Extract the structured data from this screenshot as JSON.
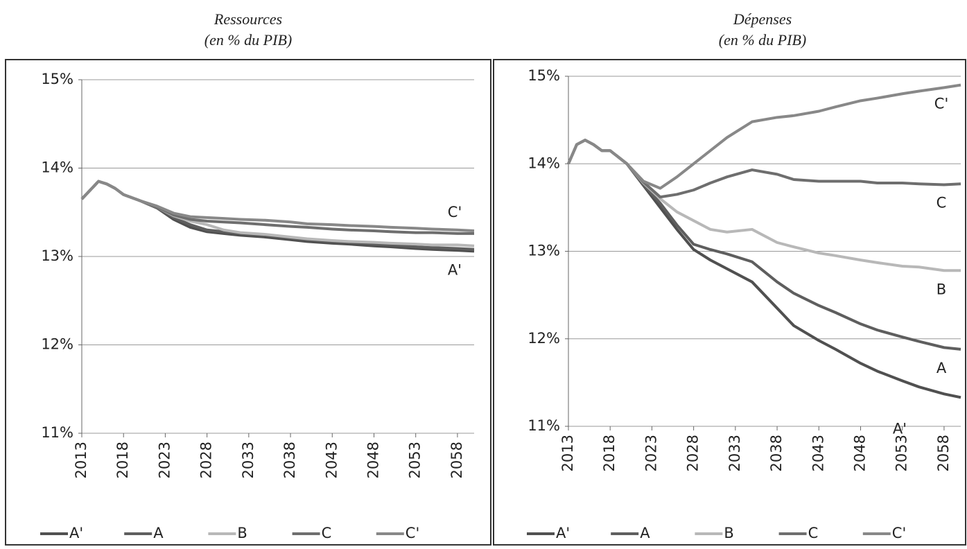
{
  "chart_data": [
    {
      "type": "line",
      "title": "Ressources",
      "subtitle": "(en % du PIB)",
      "x": [
        2013,
        2014,
        2015,
        2016,
        2017,
        2018,
        2020,
        2022,
        2024,
        2026,
        2028,
        2030,
        2032,
        2035,
        2038,
        2040,
        2043,
        2045,
        2048,
        2050,
        2053,
        2055,
        2058,
        2060
      ],
      "xlim": [
        2013,
        2060
      ],
      "xticks": [
        2013,
        2018,
        2023,
        2028,
        2033,
        2038,
        2043,
        2048,
        2053,
        2058
      ],
      "ylim": [
        11,
        15
      ],
      "yticks": [
        {
          "value": 11,
          "label": "11%"
        },
        {
          "value": 12,
          "label": "12%"
        },
        {
          "value": 13,
          "label": "13%"
        },
        {
          "value": 14,
          "label": "14%"
        },
        {
          "value": 15,
          "label": "15%"
        }
      ],
      "grid": true,
      "series": [
        {
          "name": "A'",
          "color": "#505050",
          "values": [
            13.65,
            13.75,
            13.85,
            13.82,
            13.77,
            13.7,
            13.63,
            13.55,
            13.42,
            13.33,
            13.28,
            13.26,
            13.24,
            13.22,
            13.19,
            13.17,
            13.15,
            13.14,
            13.12,
            13.11,
            13.09,
            13.08,
            13.07,
            13.06
          ]
        },
        {
          "name": "A",
          "color": "#5e5e5e",
          "values": [
            13.65,
            13.75,
            13.85,
            13.82,
            13.77,
            13.7,
            13.63,
            13.55,
            13.44,
            13.36,
            13.3,
            13.28,
            13.26,
            13.24,
            13.21,
            13.19,
            13.17,
            13.16,
            13.14,
            13.13,
            13.11,
            13.1,
            13.09,
            13.08
          ]
        },
        {
          "name": "B",
          "color": "#b8b8b8",
          "values": [
            13.65,
            13.75,
            13.85,
            13.82,
            13.77,
            13.7,
            13.63,
            13.56,
            13.46,
            13.4,
            13.36,
            13.3,
            13.27,
            13.25,
            13.22,
            13.2,
            13.18,
            13.17,
            13.16,
            13.15,
            13.14,
            13.13,
            13.13,
            13.12
          ]
        },
        {
          "name": "C",
          "color": "#6e6e6e",
          "values": [
            13.65,
            13.75,
            13.85,
            13.82,
            13.77,
            13.7,
            13.63,
            13.56,
            13.47,
            13.42,
            13.4,
            13.39,
            13.38,
            13.36,
            13.34,
            13.33,
            13.31,
            13.3,
            13.29,
            13.28,
            13.27,
            13.27,
            13.26,
            13.26
          ]
        },
        {
          "name": "C'",
          "color": "#888888",
          "values": [
            13.65,
            13.75,
            13.85,
            13.82,
            13.77,
            13.7,
            13.63,
            13.57,
            13.49,
            13.45,
            13.44,
            13.43,
            13.42,
            13.41,
            13.39,
            13.37,
            13.36,
            13.35,
            13.34,
            13.33,
            13.32,
            13.31,
            13.3,
            13.29
          ]
        }
      ],
      "annotations": [
        "C'",
        "A'"
      ]
    },
    {
      "type": "line",
      "title": "Dépenses",
      "subtitle": "(en % du PIB)",
      "x": [
        2013,
        2014,
        2015,
        2016,
        2017,
        2018,
        2020,
        2022,
        2024,
        2026,
        2028,
        2030,
        2032,
        2035,
        2038,
        2040,
        2043,
        2045,
        2048,
        2050,
        2053,
        2055,
        2058,
        2060
      ],
      "xlim": [
        2013,
        2060
      ],
      "xticks": [
        2013,
        2018,
        2023,
        2028,
        2033,
        2038,
        2043,
        2048,
        2053,
        2058
      ],
      "ylim": [
        11,
        15
      ],
      "yticks": [
        {
          "value": 11,
          "label": "11%"
        },
        {
          "value": 12,
          "label": "12%"
        },
        {
          "value": 13,
          "label": "13%"
        },
        {
          "value": 14,
          "label": "14%"
        },
        {
          "value": 15,
          "label": "15%"
        }
      ],
      "grid": true,
      "series": [
        {
          "name": "A'",
          "color": "#505050",
          "values": [
            14.0,
            14.22,
            14.27,
            14.22,
            14.15,
            14.15,
            14.0,
            13.75,
            13.5,
            13.25,
            13.02,
            12.9,
            12.8,
            12.65,
            12.35,
            12.15,
            11.98,
            11.88,
            11.72,
            11.63,
            11.52,
            11.45,
            11.37,
            11.33
          ]
        },
        {
          "name": "A",
          "color": "#5e5e5e",
          "values": [
            14.0,
            14.22,
            14.27,
            14.22,
            14.15,
            14.15,
            14.0,
            13.76,
            13.55,
            13.3,
            13.08,
            13.02,
            12.97,
            12.88,
            12.65,
            12.52,
            12.38,
            12.3,
            12.17,
            12.1,
            12.02,
            11.97,
            11.9,
            11.88
          ]
        },
        {
          "name": "B",
          "color": "#b8b8b8",
          "values": [
            14.0,
            14.22,
            14.27,
            14.22,
            14.15,
            14.15,
            14.0,
            13.78,
            13.6,
            13.45,
            13.35,
            13.25,
            13.22,
            13.25,
            13.1,
            13.05,
            12.98,
            12.95,
            12.9,
            12.87,
            12.83,
            12.82,
            12.78,
            12.78
          ]
        },
        {
          "name": "C",
          "color": "#6e6e6e",
          "values": [
            14.0,
            14.22,
            14.27,
            14.22,
            14.15,
            14.15,
            14.0,
            13.79,
            13.62,
            13.65,
            13.7,
            13.78,
            13.85,
            13.93,
            13.88,
            13.82,
            13.8,
            13.8,
            13.8,
            13.78,
            13.78,
            13.77,
            13.76,
            13.77
          ]
        },
        {
          "name": "C'",
          "color": "#888888",
          "values": [
            14.0,
            14.22,
            14.27,
            14.22,
            14.15,
            14.15,
            14.0,
            13.8,
            13.72,
            13.85,
            14.0,
            14.15,
            14.3,
            14.48,
            14.53,
            14.55,
            14.6,
            14.65,
            14.72,
            14.75,
            14.8,
            14.83,
            14.87,
            14.9
          ]
        }
      ],
      "annotations": [
        "C'",
        "C",
        "B",
        "A",
        "A'"
      ]
    }
  ]
}
